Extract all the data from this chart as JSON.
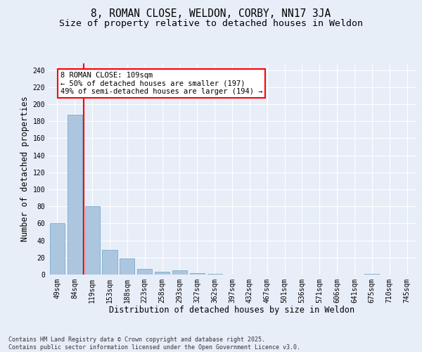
{
  "title": "8, ROMAN CLOSE, WELDON, CORBY, NN17 3JA",
  "subtitle": "Size of property relative to detached houses in Weldon",
  "xlabel": "Distribution of detached houses by size in Weldon",
  "ylabel": "Number of detached properties",
  "categories": [
    "49sqm",
    "84sqm",
    "119sqm",
    "153sqm",
    "188sqm",
    "223sqm",
    "258sqm",
    "293sqm",
    "327sqm",
    "362sqm",
    "397sqm",
    "432sqm",
    "467sqm",
    "501sqm",
    "536sqm",
    "571sqm",
    "606sqm",
    "641sqm",
    "675sqm",
    "710sqm",
    "745sqm"
  ],
  "values": [
    60,
    188,
    80,
    29,
    19,
    7,
    3,
    5,
    2,
    1,
    0,
    0,
    0,
    0,
    0,
    0,
    0,
    0,
    1,
    0,
    0
  ],
  "bar_color": "#adc6e0",
  "bar_edge_color": "#7aaac8",
  "vline_color": "red",
  "annotation_text": "8 ROMAN CLOSE: 109sqm\n← 50% of detached houses are smaller (197)\n49% of semi-detached houses are larger (194) →",
  "annotation_box_color": "white",
  "annotation_box_edge": "red",
  "ylim": [
    0,
    248
  ],
  "yticks": [
    0,
    20,
    40,
    60,
    80,
    100,
    120,
    140,
    160,
    180,
    200,
    220,
    240
  ],
  "footer": "Contains HM Land Registry data © Crown copyright and database right 2025.\nContains public sector information licensed under the Open Government Licence v3.0.",
  "bg_color": "#e8eef8",
  "grid_color": "#ffffff",
  "title_fontsize": 10.5,
  "subtitle_fontsize": 9.5,
  "label_fontsize": 8.5,
  "tick_fontsize": 7,
  "footer_fontsize": 6,
  "annot_fontsize": 7.5
}
